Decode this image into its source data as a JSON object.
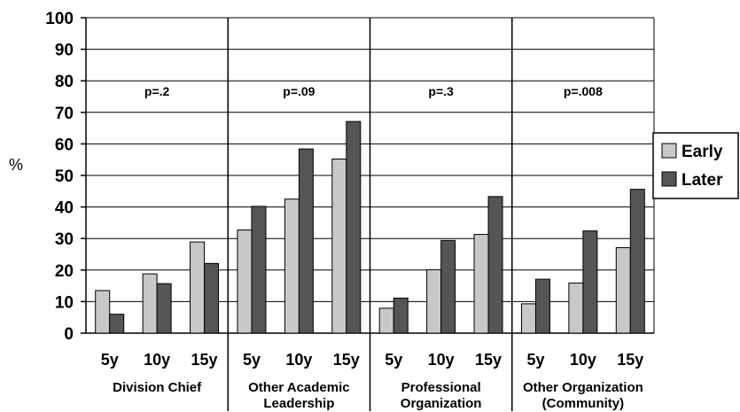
{
  "chart_data": {
    "type": "bar",
    "ylabel": "%",
    "ylim": [
      0,
      100
    ],
    "yticks": [
      0,
      10,
      20,
      30,
      40,
      50,
      60,
      70,
      80,
      90,
      100
    ],
    "grid": true,
    "legend_position": "right",
    "groups": [
      {
        "label": "Division Chief",
        "p_value": "p=.2",
        "categories": [
          "5y",
          "10y",
          "15y"
        ],
        "series": [
          {
            "name": "Early",
            "values": [
              13.5,
              18.8,
              28.9
            ]
          },
          {
            "name": "Later",
            "values": [
              6.0,
              15.7,
              22.1
            ]
          }
        ]
      },
      {
        "label": "Other Academic Leadership",
        "p_value": "p=.09",
        "categories": [
          "5y",
          "10y",
          "15y"
        ],
        "series": [
          {
            "name": "Early",
            "values": [
              32.7,
              42.5,
              55.2
            ]
          },
          {
            "name": "Later",
            "values": [
              40.2,
              58.4,
              67.1
            ]
          }
        ]
      },
      {
        "label": "Professional Organization",
        "p_value": "p=.3",
        "categories": [
          "5y",
          "10y",
          "15y"
        ],
        "series": [
          {
            "name": "Early",
            "values": [
              7.9,
              20.1,
              31.3
            ]
          },
          {
            "name": "Later",
            "values": [
              11.1,
              29.4,
              43.3
            ]
          }
        ]
      },
      {
        "label": "Other Organization (Community)",
        "p_value": "p=.008",
        "categories": [
          "5y",
          "10y",
          "15y"
        ],
        "series": [
          {
            "name": "Early",
            "values": [
              9.3,
              15.9,
              27.1
            ]
          },
          {
            "name": "Later",
            "values": [
              17.1,
              32.4,
              45.6
            ]
          }
        ]
      }
    ],
    "legend": [
      {
        "name": "Early",
        "color": "#c8c8c8"
      },
      {
        "name": "Later",
        "color": "#555555"
      }
    ]
  }
}
